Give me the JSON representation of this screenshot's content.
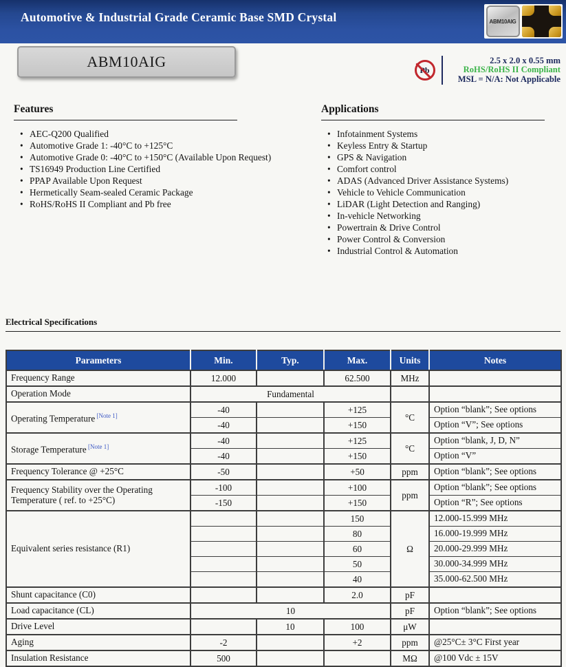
{
  "header": {
    "title": "Automotive & Industrial Grade Ceramic Base SMD Crystal",
    "package_image_label": "ABM10AIG"
  },
  "part": {
    "number": "ABM10AIG",
    "pb_free_label": "Pb",
    "size": "2.5 x 2.0 x 0.55 mm",
    "rohs": "RoHS/RoHS II Compliant",
    "msl": "MSL = N/A: Not Applicable",
    "accent_green": "#3cb44a",
    "accent_navy": "#1d2a5e"
  },
  "features": {
    "heading": "Features",
    "items": [
      "AEC-Q200 Qualified",
      "Automotive Grade 1: -40°C to +125°C",
      "Automotive Grade 0: -40°C to +150°C (Available Upon Request)",
      "TS16949 Production Line Certified",
      "PPAP Available Upon Request",
      "Hermetically Seam-sealed Ceramic Package",
      "RoHS/RoHS II Compliant and Pb free"
    ]
  },
  "applications": {
    "heading": "Applications",
    "items": [
      "Infotainment Systems",
      "Keyless Entry & Startup",
      "GPS & Navigation",
      "Comfort control",
      "ADAS (Advanced Driver Assistance Systems)",
      "Vehicle to Vehicle Communication",
      "LiDAR (Light Detection and Ranging)",
      "In-vehicle Networking",
      "Powertrain & Drive Control",
      "Power Control & Conversion",
      "Industrial Control & Automation"
    ]
  },
  "specs": {
    "heading": "Electrical Specifications",
    "table": {
      "header_color": "#1e4a9e",
      "columns": [
        "Parameters",
        "Min.",
        "Typ.",
        "Max.",
        "Units",
        "Notes"
      ],
      "rows": [
        {
          "cells": [
            {
              "text": "Frequency Range",
              "align": "left"
            },
            {
              "text": "12.000"
            },
            {
              "text": ""
            },
            {
              "text": "62.500"
            },
            {
              "text": "MHz"
            },
            {
              "text": "",
              "align": "left"
            }
          ]
        },
        {
          "cells": [
            {
              "text": "Operation Mode",
              "align": "left"
            },
            {
              "text": "Fundamental",
              "colspan": 3
            },
            {
              "text": ""
            },
            {
              "text": "",
              "align": "left"
            }
          ]
        },
        {
          "cells": [
            {
              "text": "Operating Temperature",
              "note": "[Note 1]",
              "align": "left",
              "rowspan": 2
            },
            {
              "text": "-40"
            },
            {
              "text": ""
            },
            {
              "text": "+125"
            },
            {
              "text": "°C",
              "rowspan": 2
            },
            {
              "text": "Option “blank”; See options",
              "align": "left"
            }
          ]
        },
        {
          "sub": true,
          "cells": [
            {
              "text": "-40"
            },
            {
              "text": ""
            },
            {
              "text": "+150"
            },
            {
              "text": "Option “V”; See options",
              "align": "left"
            }
          ]
        },
        {
          "cells": [
            {
              "text": "Storage Temperature",
              "note": "[Note 1]",
              "align": "left",
              "rowspan": 2
            },
            {
              "text": "-40"
            },
            {
              "text": ""
            },
            {
              "text": "+125"
            },
            {
              "text": "°C",
              "rowspan": 2
            },
            {
              "text": "Option “blank, J, D, N”",
              "align": "left"
            }
          ]
        },
        {
          "sub": true,
          "cells": [
            {
              "text": "-40"
            },
            {
              "text": ""
            },
            {
              "text": "+150"
            },
            {
              "text": "Option “V”",
              "align": "left"
            }
          ]
        },
        {
          "cells": [
            {
              "text": "Frequency Tolerance @ +25°C",
              "align": "left"
            },
            {
              "text": "-50"
            },
            {
              "text": ""
            },
            {
              "text": "+50"
            },
            {
              "text": "ppm"
            },
            {
              "text": "Option “blank”; See options",
              "align": "left"
            }
          ]
        },
        {
          "cells": [
            {
              "text": "Frequency Stability over the Operating Temperature ( ref. to +25°C)",
              "align": "left",
              "rowspan": 2
            },
            {
              "text": "-100"
            },
            {
              "text": ""
            },
            {
              "text": "+100"
            },
            {
              "text": "ppm",
              "rowspan": 2
            },
            {
              "text": "Option “blank”; See options",
              "align": "left"
            }
          ]
        },
        {
          "sub": true,
          "cells": [
            {
              "text": "-150"
            },
            {
              "text": ""
            },
            {
              "text": "+150"
            },
            {
              "text": "Option “R”; See options",
              "align": "left"
            }
          ]
        },
        {
          "cells": [
            {
              "text": "Equivalent series resistance (R1)",
              "align": "left",
              "rowspan": 5
            },
            {
              "text": ""
            },
            {
              "text": ""
            },
            {
              "text": "150"
            },
            {
              "text": "Ω",
              "rowspan": 5
            },
            {
              "text": "12.000-15.999 MHz",
              "align": "left"
            }
          ]
        },
        {
          "sub": true,
          "cells": [
            {
              "text": ""
            },
            {
              "text": ""
            },
            {
              "text": "80"
            },
            {
              "text": "16.000-19.999 MHz",
              "align": "left"
            }
          ]
        },
        {
          "sub": true,
          "cells": [
            {
              "text": ""
            },
            {
              "text": ""
            },
            {
              "text": "60"
            },
            {
              "text": "20.000-29.999 MHz",
              "align": "left"
            }
          ]
        },
        {
          "sub": true,
          "cells": [
            {
              "text": ""
            },
            {
              "text": ""
            },
            {
              "text": "50"
            },
            {
              "text": "30.000-34.999 MHz",
              "align": "left"
            }
          ]
        },
        {
          "sub": true,
          "cells": [
            {
              "text": ""
            },
            {
              "text": ""
            },
            {
              "text": "40"
            },
            {
              "text": "35.000-62.500 MHz",
              "align": "left"
            }
          ]
        },
        {
          "cells": [
            {
              "text": "Shunt capacitance (C0)",
              "align": "left"
            },
            {
              "text": ""
            },
            {
              "text": ""
            },
            {
              "text": "2.0"
            },
            {
              "text": "pF"
            },
            {
              "text": "",
              "align": "left"
            }
          ]
        },
        {
          "cells": [
            {
              "text": "Load capacitance (CL)",
              "align": "left"
            },
            {
              "text": "10",
              "colspan": 3
            },
            {
              "text": "pF"
            },
            {
              "text": "Option “blank”; See options",
              "align": "left"
            }
          ]
        },
        {
          "cells": [
            {
              "text": "Drive Level",
              "align": "left"
            },
            {
              "text": ""
            },
            {
              "text": "10"
            },
            {
              "text": "100"
            },
            {
              "text": "μW"
            },
            {
              "text": "",
              "align": "left"
            }
          ]
        },
        {
          "cells": [
            {
              "text": "Aging",
              "align": "left"
            },
            {
              "text": "-2"
            },
            {
              "text": ""
            },
            {
              "text": "+2"
            },
            {
              "text": "ppm"
            },
            {
              "text": "@25°C± 3°C First year",
              "align": "left"
            }
          ]
        },
        {
          "cells": [
            {
              "text": "Insulation Resistance",
              "align": "left"
            },
            {
              "text": "500"
            },
            {
              "text": ""
            },
            {
              "text": ""
            },
            {
              "text": "MΩ"
            },
            {
              "text": "@100 Vdc ± 15V",
              "align": "left"
            }
          ]
        }
      ]
    }
  }
}
